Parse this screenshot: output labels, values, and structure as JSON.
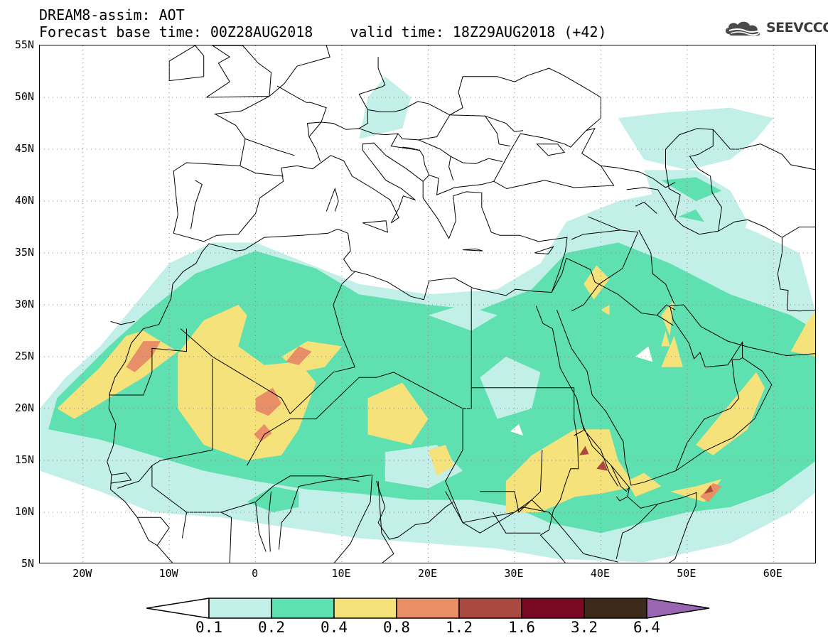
{
  "header": {
    "title": "DREAM8-assim: AOT",
    "base_time": "Forecast base time: 00Z28AUG2018",
    "valid_time": "valid time: 18Z29AUG2018 (+42)",
    "logo_text": "SEEVCCC"
  },
  "map": {
    "projection": "lat-lon",
    "lon_range": [
      -25,
      65
    ],
    "lat_range": [
      5,
      55
    ],
    "lat_labels": [
      "55N",
      "50N",
      "45N",
      "40N",
      "35N",
      "30N",
      "25N",
      "20N",
      "15N",
      "10N",
      "5N"
    ],
    "lon_labels": [
      "20W",
      "10W",
      "0",
      "10E",
      "20E",
      "30E",
      "40E",
      "50E",
      "60E"
    ],
    "grid": "dotted",
    "field": "Aerosol optical thickness (AOT), dust"
  },
  "colorbar": {
    "levels": [
      "0.1",
      "0.2",
      "0.4",
      "0.8",
      "1.2",
      "1.6",
      "3.2",
      "6.4"
    ],
    "colors": [
      "#ffffff",
      "#c2f0e8",
      "#5ee0b0",
      "#f5e27a",
      "#e88f68",
      "#a9493f",
      "#7a0a24",
      "#3d2a1a",
      "#9966b3"
    ]
  },
  "icons": [
    "cloud-logo-icon"
  ]
}
